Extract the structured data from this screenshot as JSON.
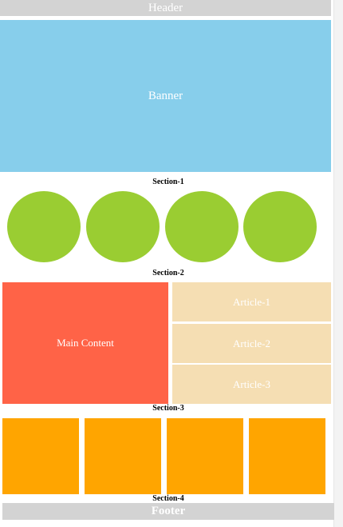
{
  "header": {
    "label": "Header"
  },
  "banner": {
    "label": "Banner"
  },
  "sections": {
    "s1": "Section-1",
    "s2": "Section-2",
    "s3": "Section-3",
    "s4": "Section-4"
  },
  "main": {
    "label": "Main Content"
  },
  "articles": [
    {
      "label": "Article-1"
    },
    {
      "label": "Article-2"
    },
    {
      "label": "Article-3"
    }
  ],
  "footer": {
    "label": "Footer"
  },
  "colors": {
    "bar": "#d3d3d3",
    "banner": "#87ceeb",
    "circle": "#9acd32",
    "main": "#ff6347",
    "article": "#f5deb3",
    "box": "#ffa500"
  }
}
